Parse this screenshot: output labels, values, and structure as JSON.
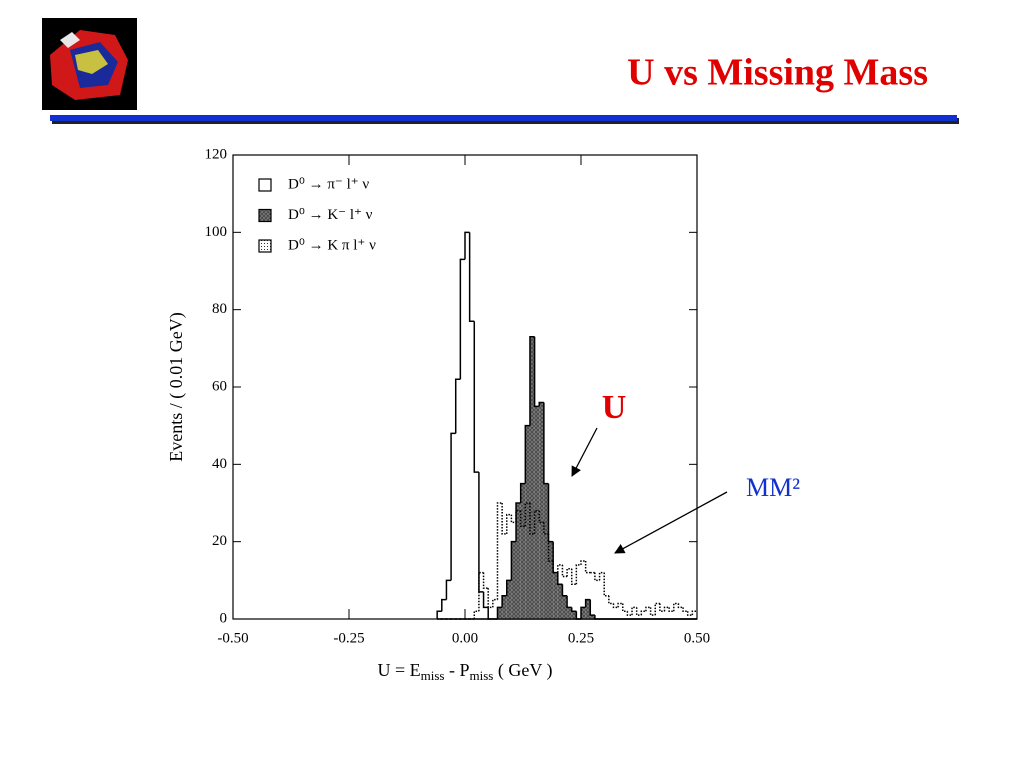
{
  "title": "U vs Missing Mass",
  "annotations": [
    "U",
    "MM²"
  ],
  "chart_data": {
    "type": "histogram",
    "ylabel": "Events / ( 0.01 GeV)",
    "xlabel": [
      "U = E",
      "miss",
      " - P",
      "miss",
      " ( GeV )"
    ],
    "bins": [
      -0.06,
      -0.05,
      -0.04,
      -0.03,
      -0.02,
      -0.01,
      0,
      0.01,
      0.02,
      0.03,
      0.04,
      0.05,
      0.06,
      0.07,
      0.08,
      0.09,
      0.1,
      0.11,
      0.12,
      0.13,
      0.14,
      0.15,
      0.16,
      0.17,
      0.18,
      0.19,
      0.2,
      0.21,
      0.22,
      0.23,
      0.24,
      0.25,
      0.26,
      0.27,
      0.28,
      0.29,
      0.3,
      0.31,
      0.32,
      0.33,
      0.34,
      0.35,
      0.36,
      0.37,
      0.38,
      0.39,
      0.4,
      0.41,
      0.42,
      0.43,
      0.44,
      0.45,
      0.46,
      0.47,
      0.48,
      0.49,
      0.5
    ],
    "series": [
      {
        "name": "D⁰ → π⁻ l⁺ ν",
        "color": "#000000",
        "fill": "none",
        "style": "solid",
        "values": [
          2,
          5,
          10,
          48,
          62,
          93,
          100,
          77,
          38,
          7,
          3,
          0,
          0,
          0,
          0,
          0,
          0,
          0,
          0,
          0,
          0,
          0,
          0,
          0,
          0,
          0,
          0,
          0,
          0,
          0,
          0,
          0,
          0,
          0,
          0,
          0,
          0,
          0,
          0,
          0,
          0,
          0,
          0,
          0,
          0,
          0,
          0,
          0,
          0,
          0,
          0,
          0,
          0,
          0,
          0,
          0
        ]
      },
      {
        "name": "D⁰ → K⁻ l⁺ ν",
        "color": "#000000",
        "fill": "hatch",
        "style": "solid",
        "values": [
          0,
          0,
          0,
          0,
          0,
          0,
          0,
          0,
          0,
          0,
          0,
          0,
          0,
          3,
          6,
          10,
          20,
          30,
          35,
          50,
          73,
          55,
          56,
          35,
          20,
          12,
          9,
          6,
          3,
          2,
          0,
          3,
          5,
          1,
          0,
          0,
          0,
          0,
          0,
          0,
          0,
          0,
          0,
          0,
          0,
          0,
          0,
          0,
          0,
          0,
          0,
          0,
          0,
          0,
          0,
          0
        ]
      },
      {
        "name": "D⁰ → K π l⁺ ν",
        "color": "#000000",
        "fill": "none",
        "style": "dotted",
        "values": [
          0,
          0,
          0,
          0,
          0,
          0,
          0,
          0,
          2,
          12,
          8,
          3,
          5,
          30,
          22,
          27,
          25,
          28,
          24,
          30,
          22,
          28,
          25,
          22,
          15,
          12,
          14,
          11,
          13,
          9,
          14,
          15,
          12,
          12,
          10,
          12,
          6,
          4,
          3,
          4,
          2,
          1,
          3,
          1,
          2,
          3,
          1,
          4,
          2,
          3,
          2,
          4,
          3,
          2,
          1,
          2
        ]
      }
    ],
    "xlim": [
      -0.5,
      0.5
    ],
    "xticks": [
      {
        "value": -0.5,
        "label": "-0.50"
      },
      -0.25,
      {
        "value": 0,
        "label": "0.00"
      },
      0.25,
      {
        "value": 0.5,
        "label": "0.50"
      }
    ],
    "ylim": [
      0,
      120
    ],
    "yticks": [
      0,
      20,
      40,
      60,
      80,
      100,
      120
    ],
    "legend": "upper left"
  }
}
